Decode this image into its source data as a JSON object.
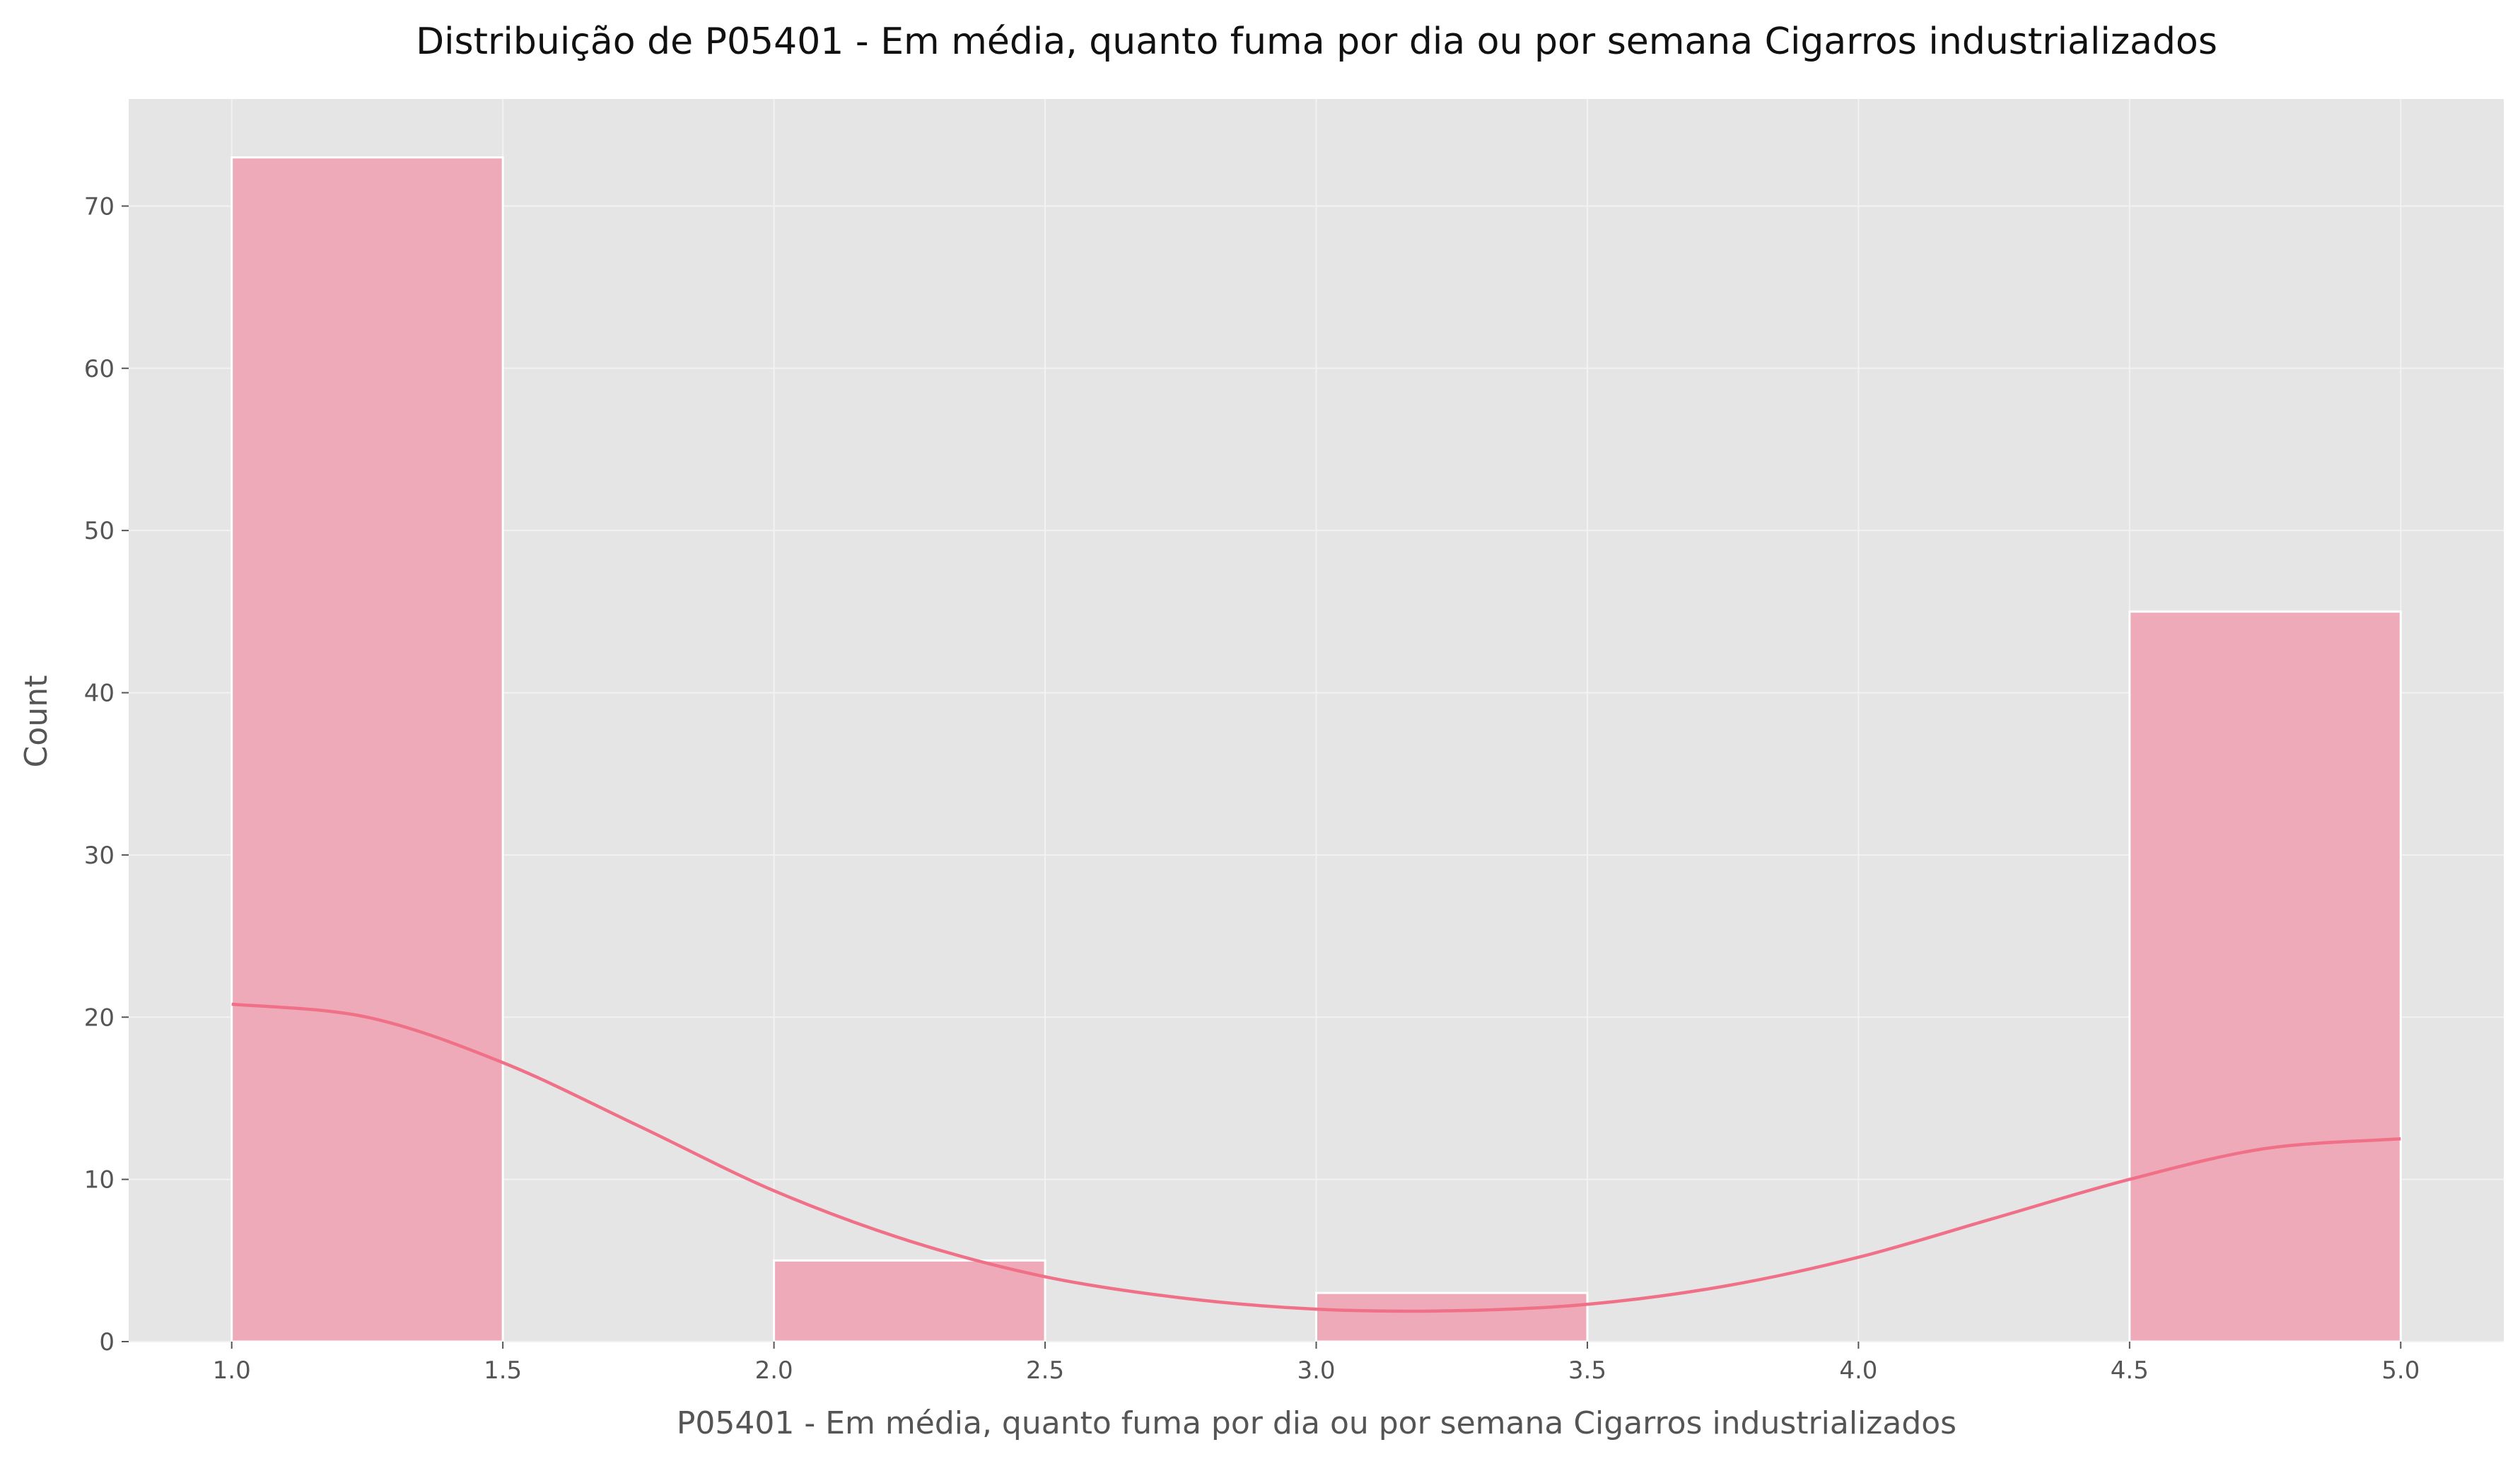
{
  "chart_data": {
    "type": "bar",
    "title": "Distribuição de P05401 - Em média, quanto fuma por dia ou por semana Cigarros industrializados",
    "xlabel": "P05401 - Em média, quanto fuma por dia ou por semana Cigarros industrializados",
    "ylabel": "Count",
    "xlim": [
      0.81,
      5.19
    ],
    "ylim": [
      0,
      76.6
    ],
    "x_ticks": [
      "1.0",
      "1.5",
      "2.0",
      "2.5",
      "3.0",
      "3.5",
      "4.0",
      "4.5",
      "5.0"
    ],
    "y_ticks": [
      "0",
      "10",
      "20",
      "30",
      "40",
      "50",
      "60",
      "70"
    ],
    "bins": [
      {
        "start": 1.0,
        "end": 1.5,
        "count": 73
      },
      {
        "start": 1.5,
        "end": 2.0,
        "count": 0
      },
      {
        "start": 2.0,
        "end": 2.5,
        "count": 5
      },
      {
        "start": 2.5,
        "end": 3.0,
        "count": 0
      },
      {
        "start": 3.0,
        "end": 3.5,
        "count": 3
      },
      {
        "start": 3.5,
        "end": 4.0,
        "count": 0
      },
      {
        "start": 4.0,
        "end": 4.5,
        "count": 0
      },
      {
        "start": 4.5,
        "end": 5.0,
        "count": 45
      }
    ],
    "kde": {
      "x": [
        1.0,
        1.25,
        1.5,
        1.75,
        2.0,
        2.25,
        2.5,
        2.75,
        3.0,
        3.25,
        3.5,
        3.75,
        4.0,
        4.25,
        4.5,
        4.75,
        5.0
      ],
      "y": [
        20.8,
        20.0,
        17.2,
        13.3,
        9.3,
        6.2,
        4.0,
        2.7,
        2.0,
        1.9,
        2.3,
        3.4,
        5.2,
        7.6,
        10.0,
        11.9,
        12.5
      ]
    },
    "grid": true,
    "colors": {
      "bar_fill": "#eeaab8",
      "bar_edge": "#ffffff",
      "kde_line": "#f07088",
      "plot_background": "#e5e5e5",
      "grid": "#f2f2f2"
    }
  }
}
